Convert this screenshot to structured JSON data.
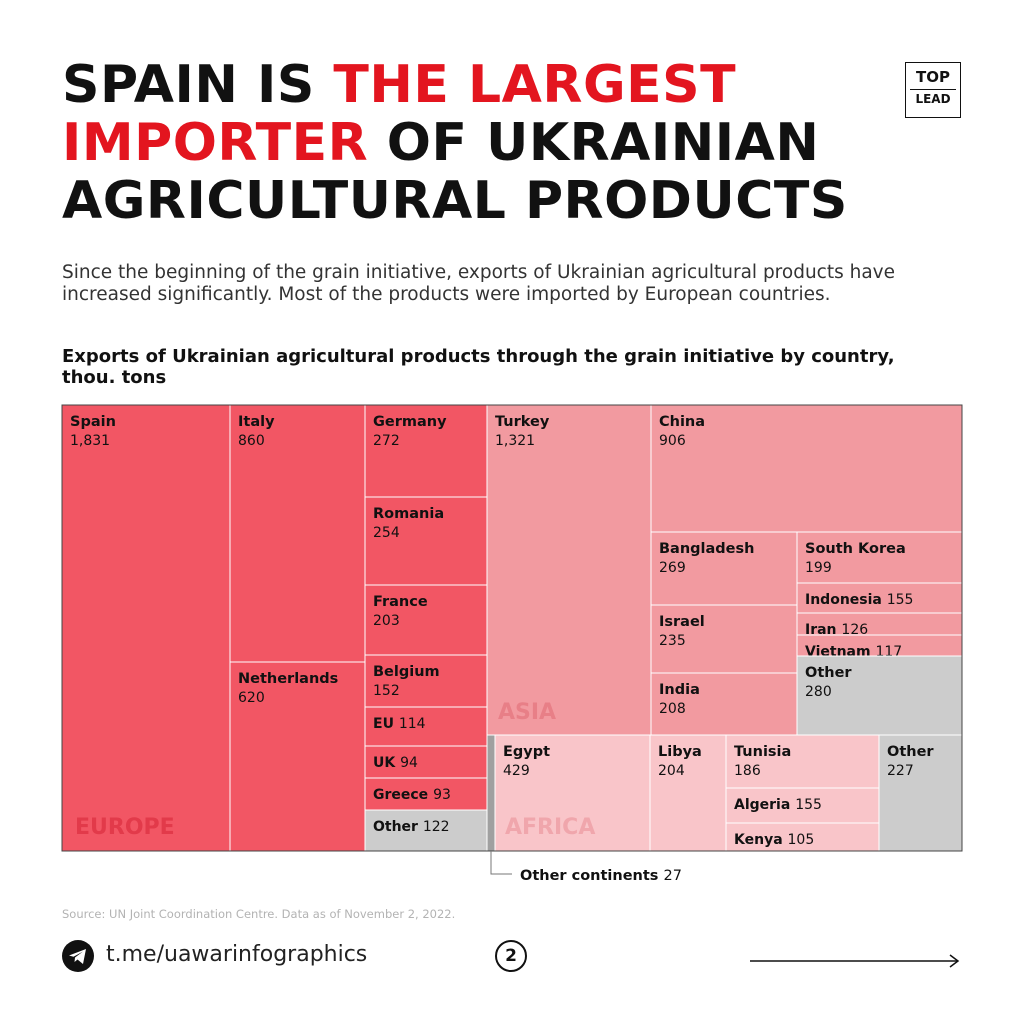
{
  "header": {
    "title_part1": "SPAIN IS ",
    "title_highlight": "THE LARGEST IMPORTER",
    "title_part2": " OF UKRAINIAN AGRICULTURAL PRODUCTS",
    "subtitle": "Since the beginning of the grain initiative, exports of Ukrainian agricultural products have increased significantly. Most of the products were imported by European countries.",
    "logo_top": "TOP",
    "logo_bottom": "LEAD"
  },
  "chart_data": {
    "type": "treemap",
    "title": "Exports of Ukrainian agricultural products through the grain initiative by country, thou. tons",
    "groups": [
      {
        "name": "EUROPE",
        "color": "#f25664",
        "items": [
          {
            "name": "Spain",
            "value": 1831
          },
          {
            "name": "Italy",
            "value": 860
          },
          {
            "name": "Netherlands",
            "value": 620
          },
          {
            "name": "Germany",
            "value": 272
          },
          {
            "name": "Romania",
            "value": 254
          },
          {
            "name": "France",
            "value": 203
          },
          {
            "name": "Belgium",
            "value": 152
          },
          {
            "name": "EU",
            "value": 114
          },
          {
            "name": "UK",
            "value": 94
          },
          {
            "name": "Greece",
            "value": 93
          },
          {
            "name": "Other",
            "value": 122
          }
        ]
      },
      {
        "name": "ASIA",
        "color": "#f29aa0",
        "items": [
          {
            "name": "Turkey",
            "value": 1321
          },
          {
            "name": "China",
            "value": 906
          },
          {
            "name": "Bangladesh",
            "value": 269
          },
          {
            "name": "Israel",
            "value": 235
          },
          {
            "name": "India",
            "value": 208
          },
          {
            "name": "South Korea",
            "value": 199
          },
          {
            "name": "Indonesia",
            "value": 155
          },
          {
            "name": "Iran",
            "value": 126
          },
          {
            "name": "Vietnam",
            "value": 117
          },
          {
            "name": "Other",
            "value": 280
          }
        ]
      },
      {
        "name": "AFRICA",
        "color": "#f9c5c9",
        "items": [
          {
            "name": "Egypt",
            "value": 429
          },
          {
            "name": "Libya",
            "value": 204
          },
          {
            "name": "Tunisia",
            "value": 186
          },
          {
            "name": "Algeria",
            "value": 155
          },
          {
            "name": "Kenya",
            "value": 105
          },
          {
            "name": "Other",
            "value": 227
          }
        ]
      },
      {
        "name": "Other continents",
        "color": "#a0a0a0",
        "items": [
          {
            "name": "Other continents",
            "value": 27
          }
        ]
      }
    ],
    "other_color": "#cccccc"
  },
  "footer": {
    "source": "Source: UN Joint Coordination Centre. Data as of November 2, 2022.",
    "link": "t.me/uawarinfographics",
    "page_number": "2",
    "icons": [
      "telegram-icon",
      "arrow-right-icon"
    ]
  }
}
